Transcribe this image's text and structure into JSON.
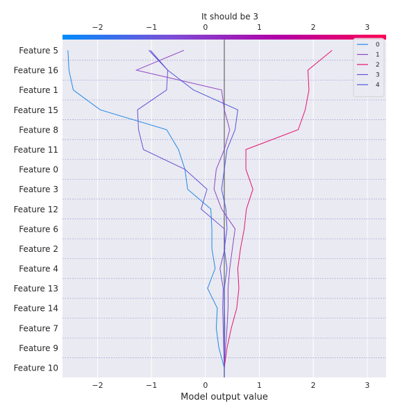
{
  "chart_data": {
    "type": "line",
    "chart_kind": "decision-plot",
    "title": "It should be 3",
    "xlabel": "Model output value",
    "ylabel": "",
    "xlim": [
      -2.65,
      3.35
    ],
    "xticks": [
      -2,
      -1,
      0,
      1,
      2,
      3
    ],
    "xtick_labels": [
      "−2",
      "−1",
      "0",
      "1",
      "2",
      "3"
    ],
    "features": [
      "Feature 5",
      "Feature 16",
      "Feature 1",
      "Feature 15",
      "Feature 8",
      "Feature 11",
      "Feature 0",
      "Feature 3",
      "Feature 12",
      "Feature 6",
      "Feature 2",
      "Feature 4",
      "Feature 13",
      "Feature 14",
      "Feature 7",
      "Feature 9",
      "Feature 10"
    ],
    "base_value": 0.35,
    "colorbar": {
      "range": [
        -2.65,
        3.35
      ],
      "colors": [
        "#008bfb",
        "#7b4fd8",
        "#b100a6",
        "#ff0052"
      ]
    },
    "grid": true,
    "legend_position": "top-right",
    "series": [
      {
        "name": "0",
        "color": "#1e88e5",
        "values": [
          -2.55,
          -2.53,
          -2.45,
          -1.95,
          -0.72,
          -0.5,
          -0.38,
          -0.33,
          0.1,
          0.12,
          0.12,
          0.18,
          0.04,
          0.22,
          0.2,
          0.25,
          0.35
        ]
      },
      {
        "name": "1",
        "color": "#8e44c4",
        "values": [
          -0.4,
          -1.28,
          0.3,
          0.35,
          0.45,
          0.35,
          0.2,
          0.16,
          0.3,
          0.55,
          0.5,
          0.45,
          0.42,
          0.42,
          0.4,
          0.37,
          0.35
        ]
      },
      {
        "name": "2",
        "color": "#e3126e",
        "values": [
          2.35,
          1.9,
          1.92,
          1.85,
          1.72,
          0.75,
          0.75,
          0.88,
          0.76,
          0.72,
          0.65,
          0.6,
          0.62,
          0.58,
          0.48,
          0.4,
          0.35
        ]
      },
      {
        "name": "3",
        "color": "#6a4fd6",
        "values": [
          -1.02,
          -0.7,
          -0.72,
          -1.26,
          -1.24,
          -1.15,
          -0.38,
          0.03,
          -0.08,
          0.35,
          0.36,
          0.27,
          0.33,
          0.32,
          0.33,
          0.34,
          0.35
        ]
      },
      {
        "name": "4",
        "color": "#4f56d6",
        "values": [
          -1.05,
          -0.7,
          -0.22,
          0.6,
          0.55,
          0.4,
          0.35,
          0.3,
          0.38,
          0.4,
          0.35,
          0.4,
          0.35,
          0.35,
          0.36,
          0.35,
          0.35
        ]
      }
    ]
  }
}
